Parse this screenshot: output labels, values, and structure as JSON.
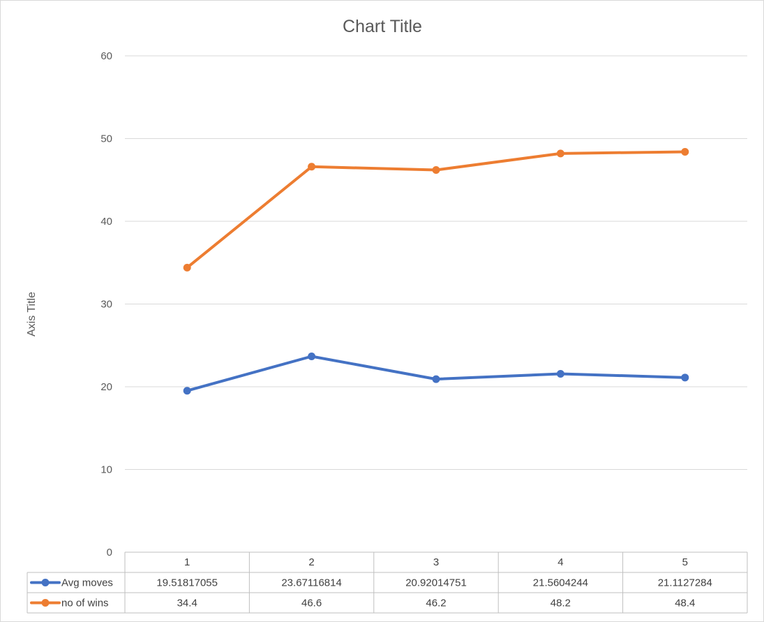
{
  "chart_data": {
    "type": "line",
    "title": "Chart Title",
    "xlabel": "",
    "ylabel": "Axis Title",
    "ylim": [
      0,
      60
    ],
    "yticks": [
      0,
      10,
      20,
      30,
      40,
      50,
      60
    ],
    "categories": [
      "1",
      "2",
      "3",
      "4",
      "5"
    ],
    "grid": true,
    "legend": "data-table-left",
    "series": [
      {
        "name": "Avg moves",
        "color": "#4472c4",
        "values": [
          19.51817055,
          23.67116814,
          20.92014751,
          21.5604244,
          21.1127284
        ],
        "labels": [
          "19.51817055",
          "23.67116814",
          "20.92014751",
          "21.5604244",
          "21.1127284"
        ]
      },
      {
        "name": "no of wins",
        "color": "#ed7d31",
        "values": [
          34.4,
          46.6,
          46.2,
          48.2,
          48.4
        ],
        "labels": [
          "34.4",
          "46.6",
          "46.2",
          "48.2",
          "48.4"
        ]
      }
    ]
  }
}
